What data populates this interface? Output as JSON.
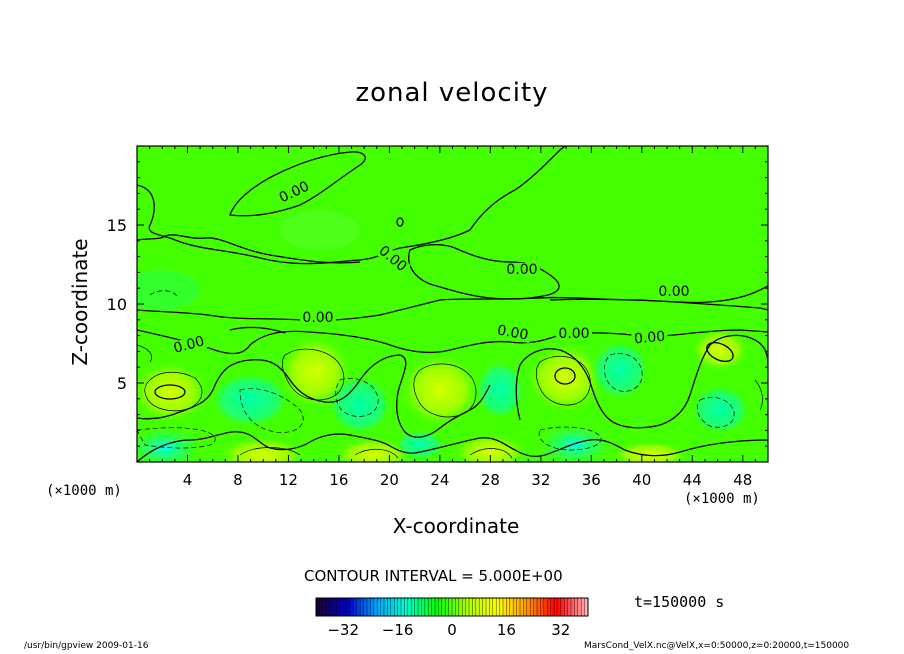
{
  "chart_data": {
    "type": "contour",
    "title": "zonal velocity",
    "xlabel": "X-coordinate",
    "ylabel": "Z-coordinate",
    "x_unit_left": "(×1000 m)",
    "x_unit_right": "(×1000 m)",
    "xlim": [
      0,
      50
    ],
    "ylim": [
      0,
      20
    ],
    "x_ticks": [
      4,
      8,
      12,
      16,
      20,
      24,
      28,
      32,
      36,
      40,
      44,
      48
    ],
    "y_ticks": [
      5,
      10,
      15
    ],
    "contour_interval_text": "CONTOUR INTERVAL = 5.000E+00",
    "contour_labels": [
      "0.00",
      "0.00",
      "0.00",
      "0.00",
      "0.00",
      "0.00",
      "0.00",
      "0.00",
      "0.00"
    ],
    "colorbar": {
      "range": [
        -40,
        40
      ],
      "ticks": [
        -32,
        -16,
        0,
        16,
        32
      ],
      "colors": [
        "#1a0033",
        "#0000cc",
        "#00aaff",
        "#00ffcc",
        "#00ff00",
        "#aaff00",
        "#ffff00",
        "#ff9900",
        "#ff0000",
        "#ffb0b0"
      ]
    },
    "time_text": "t=150000 s"
  },
  "footer": {
    "left": "/usr/bin/gpview   2009-01-16",
    "right": "MarsCond_VelX.nc@VelX,x=0:50000,z=0:20000,t=150000"
  }
}
